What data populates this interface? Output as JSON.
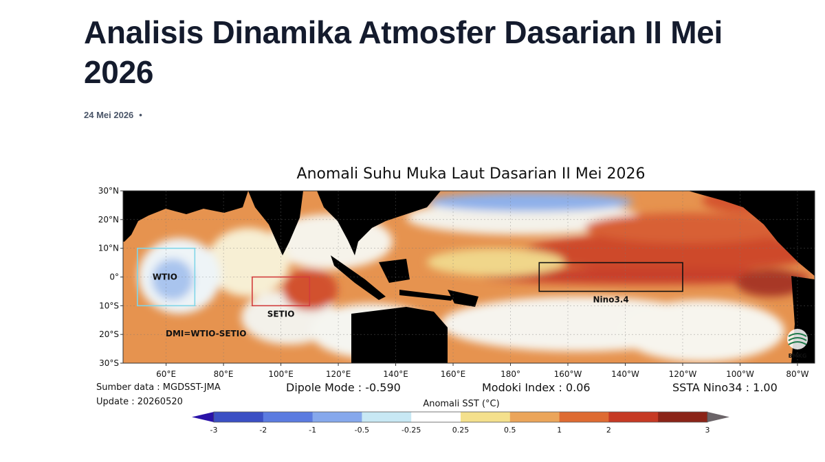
{
  "article": {
    "title": "Analisis Dinamika Atmosfer Dasarian II Mei 2026",
    "date": "24 Mei 2026",
    "separator": "•"
  },
  "chart_data": {
    "type": "heatmap",
    "title": "Anomali Suhu Muka Laut Dasarian II Mei 2026",
    "x_ticks": [
      "60°E",
      "80°E",
      "100°E",
      "120°E",
      "140°E",
      "160°E",
      "180°",
      "160°W",
      "140°W",
      "120°W",
      "100°W",
      "80°W"
    ],
    "y_ticks": [
      "30°N",
      "20°N",
      "10°N",
      "0°",
      "10°S",
      "20°S",
      "30°S"
    ],
    "lon_range": [
      45,
      286
    ],
    "lat_range": [
      -30,
      30
    ],
    "boxes": [
      {
        "name": "WTIO",
        "label": "WTIO",
        "lon": [
          50,
          70
        ],
        "lat": [
          -10,
          10
        ],
        "color": "#7fd6e8"
      },
      {
        "name": "SETIO",
        "label": "SETIO",
        "lon": [
          90,
          110
        ],
        "lat": [
          -10,
          0
        ],
        "color": "#d23c3c"
      },
      {
        "name": "Nino3.4",
        "label": "Nino3.4",
        "lon": [
          190,
          240
        ],
        "lat": [
          -5,
          5
        ],
        "color": "#111111"
      }
    ],
    "annotations": {
      "dmi": "DMI=WTIO-SETIO",
      "logo": "BMKG"
    },
    "info": {
      "source": "Sumber data : MGDSST-JMA",
      "update": "Update : 20260520",
      "dipole": "Dipole Mode : -0.590",
      "modoki": "Modoki Index : 0.06",
      "nino": "SSTA Nino34 : 1.00"
    },
    "colorbar": {
      "label": "Anomali SST (°C)",
      "ticks": [
        "-3",
        "-2",
        "-1",
        "-0.5",
        "-0.25",
        "0.25",
        "0.5",
        "1",
        "2",
        "3"
      ],
      "colors": [
        "#3b4fc4",
        "#5b7be0",
        "#86a8ec",
        "#c8e8f4",
        "#ffffff",
        "#f4e08c",
        "#eba55a",
        "#de6b32",
        "#c63a24",
        "#8b2418"
      ],
      "under_color": "#2a12a8",
      "over_color": "#6b6468"
    },
    "land_color": "#000000"
  }
}
